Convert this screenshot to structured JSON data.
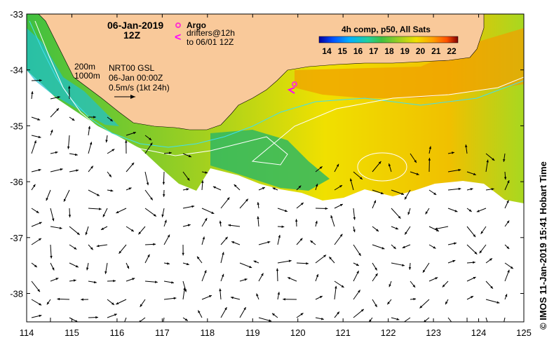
{
  "header": {
    "date": "06-Jan-2019",
    "time": "12Z"
  },
  "legend": {
    "argo_label": "Argo",
    "drifters_label": "drifters@12h",
    "drifters_sub": "to 06/01 12Z",
    "argo_color": "#ff33cc",
    "drifter_color": "#ff00ff"
  },
  "info": {
    "line1": "NRT00 GSL",
    "line2": "06-Jan 00:00Z",
    "line3": "0.5m/s (1kt 24h)",
    "contour1": "200m",
    "contour2": "1000m"
  },
  "colorbar": {
    "title": "4h comp, p50, All Sats",
    "ticks": [
      "14",
      "15",
      "16",
      "17",
      "18",
      "19",
      "20",
      "21",
      "22"
    ],
    "colors": [
      "#0000a0",
      "#0050ff",
      "#00b0ff",
      "#20d0a0",
      "#40c040",
      "#a0d020",
      "#f0e000",
      "#ffa000",
      "#ff5000",
      "#d01000",
      "#800000"
    ]
  },
  "axes": {
    "lon_labels": [
      "114",
      "115",
      "116",
      "117",
      "118",
      "119",
      "120",
      "121",
      "122",
      "123",
      "124",
      "125"
    ],
    "lat_labels": [
      "-33",
      "-34",
      "-35",
      "-36",
      "-37",
      "-38"
    ]
  },
  "map": {
    "land_color": "#f9c99a",
    "ocean_color": "#ffffff",
    "contour_200_color": "#40e0f0",
    "contour_1000_color": "#ffffff"
  },
  "credit": "© IMOS 11-Jan-2019 15:41 Hobart Time"
}
